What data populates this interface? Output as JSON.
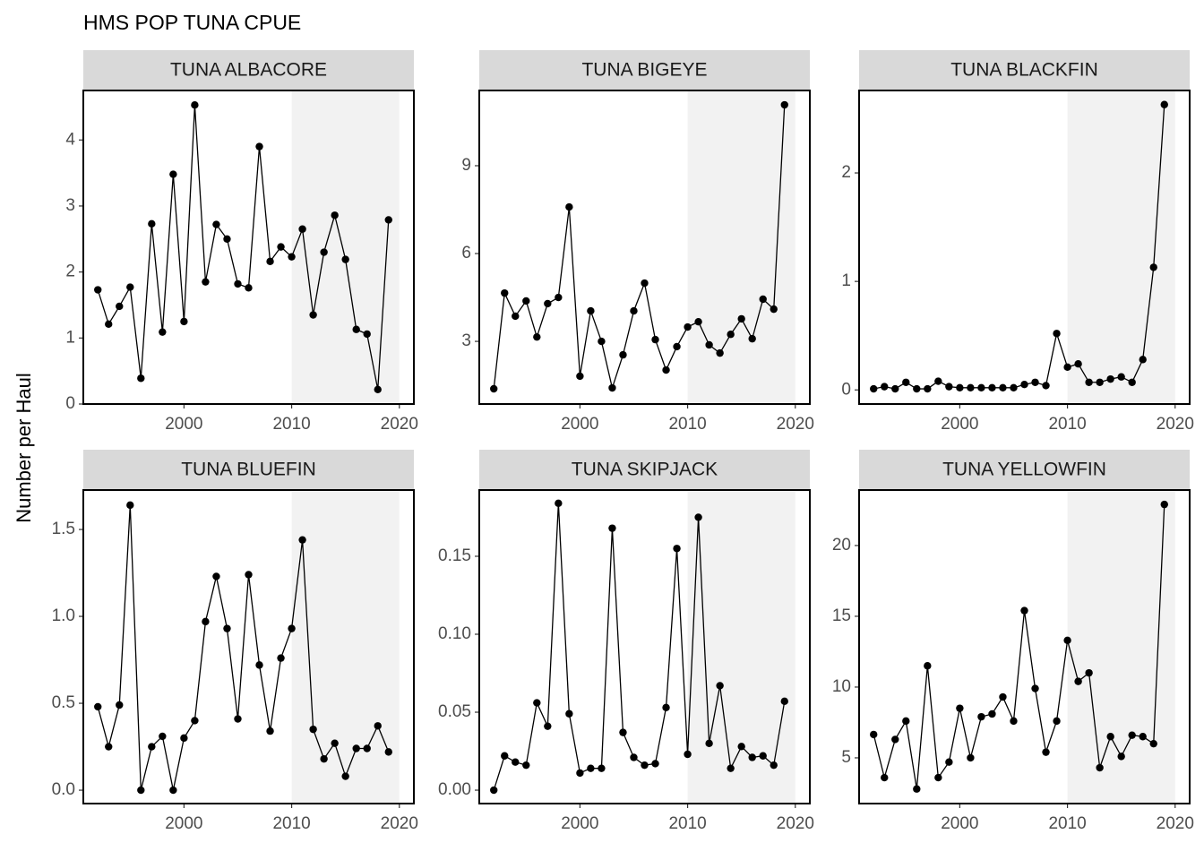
{
  "title": "HMS POP TUNA CPUE",
  "ylabel": "Number per Haul",
  "chart_data": [
    {
      "type": "line",
      "title": "TUNA ALBACORE",
      "color": "#000000",
      "shade_x": [
        2010,
        2020
      ],
      "shade_color": "#f2f2f2",
      "x": [
        1992,
        1993,
        1994,
        1995,
        1996,
        1997,
        1998,
        1999,
        2000,
        2001,
        2002,
        2003,
        2004,
        2005,
        2006,
        2007,
        2008,
        2009,
        2010,
        2011,
        2012,
        2013,
        2014,
        2015,
        2016,
        2017,
        2018,
        2019
      ],
      "values": [
        1.73,
        1.21,
        1.48,
        1.77,
        0.39,
        2.73,
        1.09,
        3.48,
        1.25,
        4.53,
        1.85,
        2.72,
        2.5,
        1.82,
        1.76,
        3.9,
        2.16,
        2.38,
        2.23,
        2.65,
        1.35,
        2.3,
        2.86,
        2.19,
        1.13,
        1.06,
        0.22,
        2.79
      ],
      "xlim": [
        1990.65,
        2021.35
      ],
      "xticks": [
        2000,
        2010,
        2020
      ],
      "ylim": [
        0,
        4.75
      ],
      "yticks": [
        0,
        1,
        2,
        3,
        4
      ]
    },
    {
      "type": "line",
      "title": "TUNA BIGEYE",
      "color": "#000000",
      "shade_x": [
        2010,
        2020
      ],
      "shade_color": "#f2f2f2",
      "x": [
        1992,
        1993,
        1994,
        1995,
        1996,
        1997,
        1998,
        1999,
        2000,
        2001,
        2002,
        2003,
        2004,
        2005,
        2006,
        2007,
        2008,
        2009,
        2010,
        2011,
        2012,
        2013,
        2014,
        2015,
        2016,
        2017,
        2018,
        2019
      ],
      "values": [
        1.38,
        4.65,
        3.86,
        4.38,
        3.15,
        4.29,
        4.5,
        7.59,
        1.81,
        4.04,
        3.0,
        1.41,
        2.54,
        4.04,
        4.99,
        3.06,
        2.02,
        2.82,
        3.49,
        3.67,
        2.88,
        2.6,
        3.24,
        3.77,
        3.09,
        4.44,
        4.1,
        11.08
      ],
      "xlim": [
        1990.65,
        2021.35
      ],
      "xticks": [
        2000,
        2010,
        2020
      ],
      "ylim": [
        0.86,
        11.57
      ],
      "yticks": [
        3,
        6,
        9
      ]
    },
    {
      "type": "line",
      "title": "TUNA BLACKFIN",
      "color": "#000000",
      "shade_x": [
        2010,
        2020
      ],
      "shade_color": "#f2f2f2",
      "x": [
        1992,
        1993,
        1994,
        1995,
        1996,
        1997,
        1998,
        1999,
        2000,
        2001,
        2002,
        2003,
        2004,
        2005,
        2006,
        2007,
        2008,
        2009,
        2010,
        2011,
        2012,
        2013,
        2014,
        2015,
        2016,
        2017,
        2018,
        2019
      ],
      "values": [
        0.01,
        0.03,
        0.01,
        0.07,
        0.01,
        0.01,
        0.08,
        0.03,
        0.02,
        0.02,
        0.02,
        0.02,
        0.02,
        0.02,
        0.05,
        0.07,
        0.04,
        0.52,
        0.21,
        0.24,
        0.07,
        0.07,
        0.1,
        0.12,
        0.07,
        0.28,
        1.13,
        2.63
      ],
      "xlim": [
        1990.65,
        2021.35
      ],
      "xticks": [
        2000,
        2010,
        2020
      ],
      "ylim": [
        -0.13,
        2.76
      ],
      "yticks": [
        0,
        1,
        2
      ]
    },
    {
      "type": "line",
      "title": "TUNA BLUEFIN",
      "color": "#000000",
      "shade_x": [
        2010,
        2020
      ],
      "shade_color": "#f2f2f2",
      "x": [
        1992,
        1993,
        1994,
        1995,
        1996,
        1997,
        1998,
        1999,
        2000,
        2001,
        2002,
        2003,
        2004,
        2005,
        2006,
        2007,
        2008,
        2009,
        2010,
        2011,
        2012,
        2013,
        2014,
        2015,
        2016,
        2017,
        2018,
        2019
      ],
      "values": [
        0.48,
        0.25,
        0.49,
        1.64,
        0.0,
        0.25,
        0.31,
        0.0,
        0.3,
        0.4,
        0.97,
        1.23,
        0.93,
        0.41,
        1.24,
        0.72,
        0.34,
        0.76,
        0.93,
        1.44,
        0.35,
        0.18,
        0.27,
        0.08,
        0.24,
        0.24,
        0.37,
        0.22
      ],
      "xlim": [
        1990.65,
        2021.35
      ],
      "xticks": [
        2000,
        2010,
        2020
      ],
      "ylim": [
        -0.077,
        1.727
      ],
      "yticks": [
        {
          "value": 0,
          "label": "0.0"
        },
        0.5,
        {
          "value": 1,
          "label": "1.0"
        },
        1.5
      ]
    },
    {
      "type": "line",
      "title": "TUNA SKIPJACK",
      "color": "#000000",
      "shade_x": [
        2010,
        2020
      ],
      "shade_color": "#f2f2f2",
      "x": [
        1992,
        1993,
        1994,
        1995,
        1996,
        1997,
        1998,
        1999,
        2000,
        2001,
        2002,
        2003,
        2004,
        2005,
        2006,
        2007,
        2008,
        2009,
        2010,
        2011,
        2012,
        2013,
        2014,
        2015,
        2016,
        2017,
        2018,
        2019
      ],
      "values": [
        0.0,
        0.022,
        0.018,
        0.016,
        0.056,
        0.041,
        0.184,
        0.049,
        0.011,
        0.014,
        0.014,
        0.168,
        0.037,
        0.021,
        0.016,
        0.017,
        0.053,
        0.155,
        0.023,
        0.175,
        0.03,
        0.067,
        0.014,
        0.028,
        0.021,
        0.022,
        0.016,
        0.057
      ],
      "xlim": [
        1990.65,
        2021.35
      ],
      "xticks": [
        2000,
        2010,
        2020
      ],
      "ylim": [
        -0.0086,
        0.1925
      ],
      "yticks": [
        {
          "value": 0,
          "label": "0.00"
        },
        0.05,
        {
          "value": 0.1,
          "label": "0.10"
        },
        0.15
      ]
    },
    {
      "type": "line",
      "title": "TUNA YELLOWFIN",
      "color": "#000000",
      "shade_x": [
        2010,
        2020
      ],
      "shade_color": "#f2f2f2",
      "x": [
        1992,
        1993,
        1994,
        1995,
        1996,
        1997,
        1998,
        1999,
        2000,
        2001,
        2002,
        2003,
        2004,
        2005,
        2006,
        2007,
        2008,
        2009,
        2010,
        2011,
        2012,
        2013,
        2014,
        2015,
        2016,
        2017,
        2018,
        2019
      ],
      "values": [
        6.65,
        3.6,
        6.3,
        7.6,
        2.8,
        11.5,
        3.6,
        4.7,
        8.5,
        5.0,
        7.9,
        8.1,
        9.3,
        7.6,
        15.4,
        9.9,
        5.4,
        7.6,
        13.3,
        10.4,
        11.0,
        4.3,
        6.5,
        5.1,
        6.6,
        6.5,
        6.0,
        22.9
      ],
      "xlim": [
        1990.65,
        2021.35
      ],
      "xticks": [
        2000,
        2010,
        2020
      ],
      "ylim": [
        1.77,
        23.92
      ],
      "yticks": [
        5,
        10,
        15,
        20
      ]
    }
  ]
}
